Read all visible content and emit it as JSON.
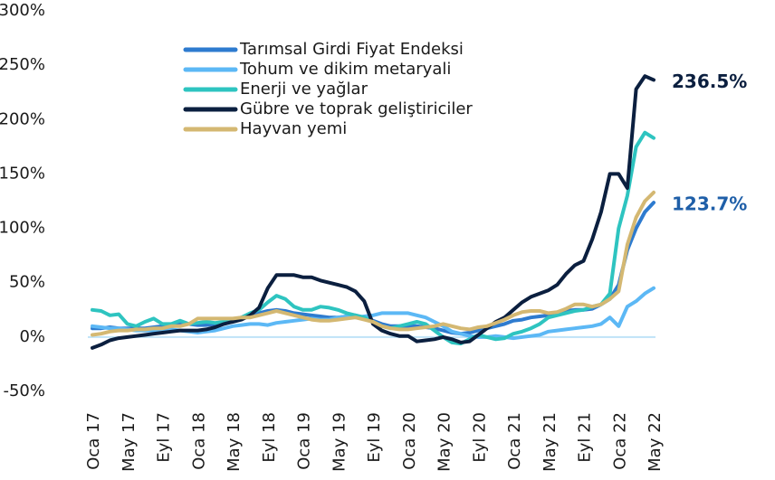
{
  "chart_data": {
    "type": "line",
    "categories": [
      "Oca 17",
      null,
      null,
      null,
      "May 17",
      null,
      null,
      null,
      "Eyl 17",
      null,
      null,
      null,
      "Oca 18",
      null,
      null,
      null,
      "May 18",
      null,
      null,
      null,
      "Eyl 18",
      null,
      null,
      null,
      "Oca 19",
      null,
      null,
      null,
      "May 19",
      null,
      null,
      null,
      "Eyl 19",
      null,
      null,
      null,
      "Oca 20",
      null,
      null,
      null,
      "May 20",
      null,
      null,
      null,
      "Eyl 20",
      null,
      null,
      null,
      "Oca 21",
      null,
      null,
      null,
      "May 21",
      null,
      null,
      null,
      "Eyl 21",
      null,
      null,
      null,
      "Oca 22",
      null,
      null,
      null,
      "May 22"
    ],
    "series": [
      {
        "name": "Tarımsal Girdi Fiyat Endeksi",
        "color": "#2e7bcf",
        "values": [
          8,
          8,
          9,
          8,
          8,
          8,
          8,
          9,
          10,
          11,
          12,
          12,
          11,
          11,
          12,
          14,
          16,
          18,
          20,
          22,
          24,
          25,
          24,
          22,
          21,
          20,
          19,
          18,
          18,
          19,
          20,
          18,
          15,
          12,
          10,
          10,
          10,
          10,
          9,
          8,
          6,
          4,
          3,
          4,
          6,
          8,
          10,
          12,
          15,
          16,
          18,
          19,
          20,
          22,
          24,
          25,
          25,
          26,
          30,
          35,
          48,
          80,
          100,
          115,
          123.7
        ]
      },
      {
        "name": "Tohum ve dikim metaryali",
        "color": "#5cb8f5",
        "values": [
          10,
          9,
          8,
          8,
          7,
          6,
          6,
          6,
          7,
          7,
          6,
          5,
          4,
          5,
          6,
          8,
          10,
          11,
          12,
          12,
          11,
          13,
          14,
          15,
          16,
          17,
          16,
          16,
          18,
          19,
          18,
          19,
          20,
          22,
          22,
          22,
          22,
          20,
          18,
          14,
          10,
          5,
          3,
          1,
          0,
          0,
          1,
          0,
          -1,
          0,
          1,
          2,
          5,
          6,
          7,
          8,
          9,
          10,
          12,
          18,
          10,
          28,
          33,
          40,
          45
        ]
      },
      {
        "name": "Enerji ve yağlar",
        "color": "#2ec4c0",
        "values": [
          25,
          24,
          20,
          21,
          12,
          10,
          14,
          17,
          12,
          12,
          15,
          12,
          13,
          14,
          13,
          14,
          15,
          18,
          22,
          25,
          32,
          38,
          35,
          28,
          25,
          25,
          28,
          27,
          25,
          22,
          20,
          18,
          14,
          10,
          8,
          10,
          12,
          14,
          12,
          6,
          0,
          -5,
          -6,
          -2,
          2,
          0,
          -2,
          -1,
          3,
          5,
          8,
          12,
          18,
          20,
          22,
          24,
          25,
          28,
          30,
          40,
          100,
          130,
          175,
          188,
          183
        ]
      },
      {
        "name": "Gübre ve toprak geliştiriciler",
        "color": "#0b1f3f",
        "values": [
          -10,
          -7,
          -3,
          -1,
          0,
          1,
          2,
          3,
          4,
          5,
          6,
          6,
          6,
          7,
          9,
          12,
          14,
          16,
          20,
          27,
          45,
          57,
          57,
          57,
          55,
          55,
          52,
          50,
          48,
          46,
          42,
          33,
          12,
          6,
          3,
          1,
          1,
          -4,
          -3,
          -2,
          0,
          -2,
          -5,
          -4,
          2,
          8,
          14,
          18,
          25,
          32,
          37,
          40,
          43,
          48,
          58,
          66,
          70,
          90,
          115,
          150,
          150,
          137,
          228,
          240,
          236.5
        ]
      },
      {
        "name": "Hayvan yemi",
        "color": "#d4b872",
        "values": [
          2,
          3,
          5,
          6,
          6,
          7,
          7,
          8,
          8,
          10,
          10,
          12,
          17,
          17,
          17,
          17,
          17,
          18,
          18,
          20,
          22,
          24,
          22,
          20,
          18,
          16,
          15,
          15,
          16,
          17,
          18,
          16,
          14,
          10,
          8,
          7,
          7,
          8,
          9,
          10,
          12,
          10,
          8,
          7,
          9,
          10,
          13,
          16,
          20,
          23,
          24,
          24,
          22,
          23,
          26,
          30,
          30,
          28,
          30,
          35,
          42,
          85,
          110,
          125,
          133
        ]
      }
    ],
    "ylim": [
      -50,
      300
    ],
    "yticks": [
      {
        "value": -50,
        "label": "-50%"
      },
      {
        "value": 0,
        "label": "0%"
      },
      {
        "value": 50,
        "label": "50%"
      },
      {
        "value": 100,
        "label": "100%"
      },
      {
        "value": 150,
        "label": "150%"
      },
      {
        "value": 200,
        "label": "200%"
      },
      {
        "value": 250,
        "label": "250%"
      },
      {
        "value": 300,
        "label": "300%"
      }
    ],
    "annotations": [
      {
        "label": "236.5%",
        "value": 236.5,
        "color": "#0b1f3f"
      },
      {
        "label": "123.7%",
        "value": 123.7,
        "color": "#1f5fa8"
      }
    ]
  }
}
